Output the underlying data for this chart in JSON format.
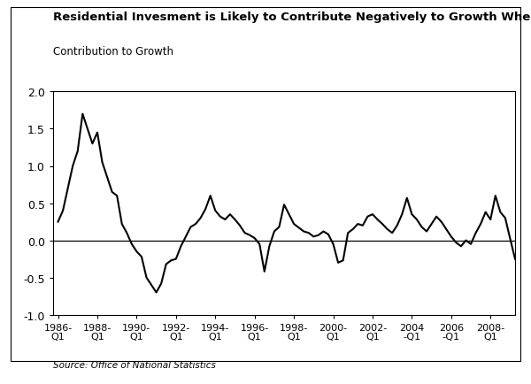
{
  "title": "Residential Invesment is Likely to Contribute Negatively to Growth When Prices Fall",
  "ylabel": "Contribution to Growth",
  "source": "Source: Office of National Statistics",
  "ylim": [
    -1.0,
    2.0
  ],
  "yticks": [
    -1.0,
    -0.5,
    0.0,
    0.5,
    1.0,
    1.5,
    2.0
  ],
  "line_color": "#000000",
  "line_width": 1.5,
  "background_color": "#ffffff",
  "xtick_labels": [
    "1986-\nQ1",
    "1988-\nQ1",
    "1990-\nQ1",
    "1992-\nQ1",
    "1994-\nQ1",
    "1996-\nQ1",
    "1998-\nQ1",
    "2000-\nQ1",
    "2002-\nQ1",
    "2004\n-Q1",
    "2006\n-Q1",
    "2008-\nQ1"
  ],
  "xtick_positions": [
    0,
    8,
    16,
    24,
    32,
    40,
    48,
    56,
    64,
    72,
    80,
    88
  ],
  "values": [
    0.25,
    0.4,
    0.7,
    1.0,
    1.2,
    1.7,
    1.5,
    1.3,
    1.45,
    1.05,
    0.85,
    0.65,
    0.6,
    0.22,
    0.1,
    -0.05,
    -0.15,
    -0.22,
    -0.5,
    -0.6,
    -0.7,
    -0.58,
    -0.32,
    -0.27,
    -0.25,
    -0.08,
    0.05,
    0.18,
    0.22,
    0.3,
    0.42,
    0.6,
    0.4,
    0.32,
    0.28,
    0.35,
    0.28,
    0.2,
    0.1,
    0.07,
    0.03,
    -0.05,
    -0.42,
    -0.08,
    0.12,
    0.18,
    0.48,
    0.35,
    0.22,
    0.17,
    0.12,
    0.1,
    0.05,
    0.07,
    0.12,
    0.08,
    -0.05,
    -0.3,
    -0.27,
    0.1,
    0.15,
    0.22,
    0.2,
    0.32,
    0.35,
    0.28,
    0.22,
    0.15,
    0.1,
    0.2,
    0.35,
    0.57,
    0.35,
    0.28,
    0.18,
    0.12,
    0.22,
    0.32,
    0.25,
    0.15,
    0.05,
    -0.03,
    -0.08,
    0.0,
    -0.05,
    0.1,
    0.22,
    0.38,
    0.28,
    0.6,
    0.38,
    0.3,
    0.02,
    -0.25
  ]
}
